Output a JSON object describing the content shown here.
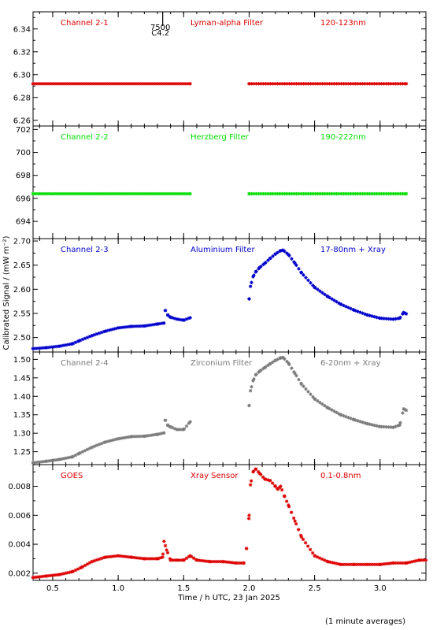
{
  "figure": {
    "ylabel": "Calibrated Signal / (mW m⁻²)",
    "xlabel": "Time / h UTC, 23 Jan 2025",
    "footnote": "(1 minute averages)",
    "event_marker": {
      "x": 1.34,
      "label_top": "7500",
      "label_bottom": "C4.2"
    }
  },
  "chart_data": [
    {
      "type": "scatter",
      "channel": "Channel 2-1",
      "filter": "Lyman-alpha Filter",
      "band": "120-123nm",
      "color": "#dd0000",
      "xlim": [
        0.35,
        3.35
      ],
      "ylim": [
        6.255,
        6.355
      ],
      "yticks": [
        6.26,
        6.28,
        6.3,
        6.32,
        6.34
      ],
      "ytick_labels": [
        "6.26",
        "6.28",
        "6.30",
        "6.32",
        "6.34"
      ],
      "series": [
        {
          "segment": 1,
          "x": [
            0.35,
            1.55
          ],
          "y": [
            6.292,
            6.292
          ]
        },
        {
          "segment": 2,
          "x": [
            2.0,
            3.2
          ],
          "y": [
            6.292,
            6.292
          ]
        }
      ]
    },
    {
      "type": "scatter",
      "channel": "Channel 2-2",
      "filter": "Herzberg Filter",
      "band": "190-222nm",
      "color": "#00dd00",
      "xlim": [
        0.35,
        3.35
      ],
      "ylim": [
        692.5,
        702.3
      ],
      "yticks": [
        694,
        696,
        698,
        700,
        702
      ],
      "ytick_labels": [
        "694",
        "696",
        "698",
        "700",
        "702"
      ],
      "series": [
        {
          "segment": 1,
          "x": [
            0.35,
            1.55
          ],
          "y": [
            696.4,
            696.4
          ]
        },
        {
          "segment": 2,
          "x": [
            2.0,
            3.2
          ],
          "y": [
            696.4,
            696.4
          ]
        }
      ]
    },
    {
      "type": "scatter",
      "channel": "Channel 2-3",
      "filter": "Aluminium Filter",
      "band": "17-80nm + Xray",
      "color": "#0000cc",
      "xlim": [
        0.35,
        3.35
      ],
      "ylim": [
        2.47,
        2.705
      ],
      "yticks": [
        2.5,
        2.55,
        2.6,
        2.65,
        2.7
      ],
      "ytick_labels": [
        "2.50",
        "2.55",
        "2.60",
        "2.65",
        "2.70"
      ],
      "series": [
        {
          "segment": 1,
          "x": [
            0.35,
            0.45,
            0.55,
            0.65,
            0.7,
            0.8,
            0.9,
            1.0,
            1.1,
            1.2,
            1.3,
            1.35,
            1.36,
            1.38,
            1.4,
            1.45,
            1.5,
            1.55
          ],
          "y": [
            2.477,
            2.479,
            2.482,
            2.487,
            2.493,
            2.504,
            2.513,
            2.52,
            2.523,
            2.524,
            2.528,
            2.53,
            2.556,
            2.546,
            2.542,
            2.538,
            2.536,
            2.541
          ]
        },
        {
          "segment": 2,
          "x": [
            2.0,
            2.01,
            2.03,
            2.05,
            2.08,
            2.12,
            2.16,
            2.2,
            2.24,
            2.26,
            2.3,
            2.35,
            2.4,
            2.5,
            2.6,
            2.7,
            2.8,
            2.9,
            3.0,
            3.1,
            3.15,
            3.18,
            3.2
          ],
          "y": [
            2.58,
            2.606,
            2.626,
            2.636,
            2.645,
            2.654,
            2.664,
            2.673,
            2.68,
            2.681,
            2.672,
            2.654,
            2.634,
            2.604,
            2.585,
            2.569,
            2.557,
            2.547,
            2.54,
            2.538,
            2.54,
            2.552,
            2.549
          ]
        }
      ]
    },
    {
      "type": "scatter",
      "channel": "Channel 2-4",
      "filter": "Zirconium Filter",
      "band": "6-20nm + Xray",
      "color": "#7a7a7a",
      "xlim": [
        0.35,
        3.35
      ],
      "ylim": [
        1.215,
        1.52
      ],
      "yticks": [
        1.25,
        1.3,
        1.35,
        1.4,
        1.45,
        1.5
      ],
      "ytick_labels": [
        "1.25",
        "1.30",
        "1.35",
        "1.40",
        "1.45",
        "1.50"
      ],
      "series": [
        {
          "segment": 1,
          "x": [
            0.35,
            0.45,
            0.55,
            0.65,
            0.7,
            0.8,
            0.9,
            1.0,
            1.1,
            1.2,
            1.3,
            1.35,
            1.36,
            1.38,
            1.4,
            1.45,
            1.5,
            1.55
          ],
          "y": [
            1.22,
            1.224,
            1.229,
            1.236,
            1.245,
            1.262,
            1.276,
            1.285,
            1.291,
            1.292,
            1.297,
            1.301,
            1.335,
            1.321,
            1.317,
            1.31,
            1.31,
            1.331
          ]
        },
        {
          "segment": 2,
          "x": [
            2.0,
            2.01,
            2.03,
            2.05,
            2.08,
            2.12,
            2.16,
            2.2,
            2.24,
            2.26,
            2.3,
            2.35,
            2.4,
            2.5,
            2.6,
            2.7,
            2.8,
            2.9,
            3.0,
            3.1,
            3.15,
            3.18,
            3.2
          ],
          "y": [
            1.375,
            1.415,
            1.442,
            1.458,
            1.468,
            1.478,
            1.488,
            1.497,
            1.504,
            1.505,
            1.49,
            1.462,
            1.433,
            1.393,
            1.369,
            1.35,
            1.337,
            1.326,
            1.318,
            1.316,
            1.322,
            1.366,
            1.362
          ]
        }
      ]
    },
    {
      "type": "scatter",
      "channel": "GOES",
      "filter": "Xray Sensor",
      "band": "0.1-0.8nm",
      "color": "#dd0000",
      "xlim": [
        0.35,
        3.35
      ],
      "ylim": [
        0.0015,
        0.0095
      ],
      "yticks": [
        0.002,
        0.004,
        0.006,
        0.008
      ],
      "ytick_labels": [
        "0.002",
        "0.004",
        "0.006",
        "0.008"
      ],
      "series": [
        {
          "segment": 1,
          "x": [
            0.35,
            0.45,
            0.55,
            0.65,
            0.72,
            0.8,
            0.9,
            1.0,
            1.1,
            1.2,
            1.3,
            1.34,
            1.35,
            1.37,
            1.4,
            1.45,
            1.5,
            1.55,
            1.6,
            1.7,
            1.8,
            1.9,
            1.96
          ],
          "y": [
            0.0017,
            0.0018,
            0.0019,
            0.0021,
            0.0024,
            0.0028,
            0.0031,
            0.0032,
            0.0031,
            0.003,
            0.003,
            0.0031,
            0.0042,
            0.0036,
            0.0029,
            0.0029,
            0.0029,
            0.0032,
            0.0029,
            0.0028,
            0.0028,
            0.0027,
            0.0027
          ]
        },
        {
          "segment": 2,
          "x": [
            1.98,
            2.0,
            2.01,
            2.03,
            2.05,
            2.08,
            2.12,
            2.16,
            2.2,
            2.22,
            2.24,
            2.27,
            2.3,
            2.35,
            2.4,
            2.5,
            2.6,
            2.7,
            2.8,
            2.9,
            3.0,
            3.1,
            3.2,
            3.3,
            3.35
          ],
          "y": [
            0.0037,
            0.006,
            0.0081,
            0.009,
            0.0092,
            0.0089,
            0.0085,
            0.0084,
            0.008,
            0.0078,
            0.008,
            0.0073,
            0.0067,
            0.0056,
            0.0045,
            0.0032,
            0.0028,
            0.0026,
            0.0026,
            0.0026,
            0.0026,
            0.0027,
            0.0027,
            0.0029,
            0.0029
          ]
        }
      ]
    }
  ],
  "x_axis": {
    "ticks": [
      0.5,
      1.0,
      1.5,
      2.0,
      2.5,
      3.0
    ],
    "tick_labels": [
      "0.5",
      "1.0",
      "1.5",
      "2.0",
      "2.5",
      "3.0"
    ]
  }
}
